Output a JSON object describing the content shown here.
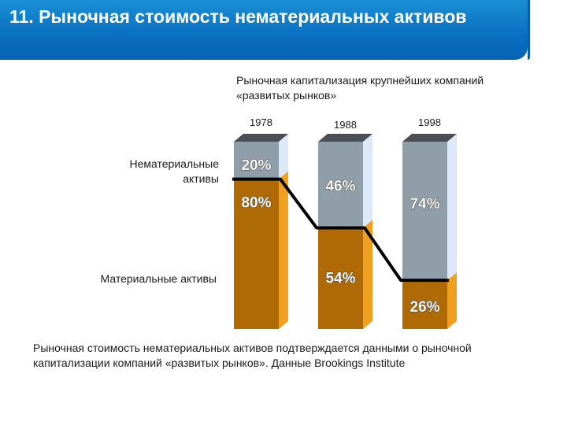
{
  "header": {
    "title": "11. Рыночная стоимость нематериальных активов"
  },
  "chart_caption": "Рыночная капитализация крупнейших компаний «развитых рынков»",
  "row_labels": {
    "top": "Нематериальные активы",
    "bottom": "Материальные активы"
  },
  "footer_text": "Рыночная стоимость нематериальных активов подтверждается данными о рыночной капитализации компаний «развитых рынков». Данные Brookings Institute",
  "colors": {
    "header_blue": "#0a6fc0",
    "intangible_gray": "#8f9ea8",
    "tangible_brown": "#b06a05",
    "side_orange": "#f0a020",
    "side_light_blue": "#dde9f8",
    "top_dark": "#4a4f55",
    "line_black": "#000000"
  },
  "chart_data": {
    "type": "bar",
    "stacked": true,
    "categories": [
      "1978",
      "1988",
      "1998"
    ],
    "series": [
      {
        "name": "Материальные активы",
        "values": [
          80,
          54,
          26
        ],
        "labels": [
          "80%",
          "54%",
          "26%"
        ]
      },
      {
        "name": "Нематериальные активы",
        "values": [
          20,
          46,
          74
        ],
        "labels": [
          "20%",
          "46%",
          "74%"
        ]
      }
    ],
    "ylim": [
      0,
      100
    ]
  }
}
